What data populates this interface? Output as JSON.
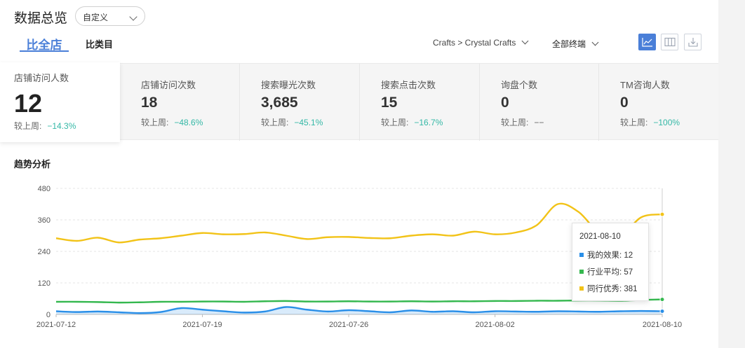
{
  "header": {
    "title": "数据总览",
    "range_select": "自定义"
  },
  "tabs": [
    {
      "label": "比全店"
    },
    {
      "label": "比类目"
    }
  ],
  "filters": {
    "category": "Crafts > Crystal Crafts",
    "terminal": "全部终端"
  },
  "view_buttons": [
    {
      "icon": "line-chart-icon",
      "active": true
    },
    {
      "icon": "columns-icon"
    },
    {
      "icon": "download-icon"
    }
  ],
  "metrics": [
    {
      "label": "店铺访问人数",
      "value": "12",
      "compare_label": "较上周:",
      "delta": "−14.3%"
    },
    {
      "label": "店铺访问次数",
      "value": "18",
      "compare_label": "较上周:",
      "delta": "−48.6%"
    },
    {
      "label": "搜索曝光次数",
      "value": "3,685",
      "compare_label": "较上周:",
      "delta": "−45.1%"
    },
    {
      "label": "搜索点击次数",
      "value": "15",
      "compare_label": "较上周:",
      "delta": "−16.7%"
    },
    {
      "label": "询盘个数",
      "value": "0",
      "compare_label": "较上周:",
      "delta": "−−"
    },
    {
      "label": "TM咨询人数",
      "value": "0",
      "compare_label": "较上周:",
      "delta": "−100%"
    }
  ],
  "colors": {
    "accent": "#4a7fd8",
    "delta_down": "#34b8a6",
    "mine": "#2a8fe8",
    "industry_avg": "#35b84f",
    "peer_best": "#f2c318"
  },
  "trend": {
    "title": "趋势分析",
    "tooltip": {
      "date": "2021-08-10",
      "rows": [
        {
          "label": "我的效果: 12",
          "color": "#2a8fe8"
        },
        {
          "label": "行业平均: 57",
          "color": "#35b84f"
        },
        {
          "label": "同行优秀: 381",
          "color": "#f2c318"
        }
      ]
    }
  },
  "chart_data": {
    "type": "line",
    "title": "",
    "ylim": [
      0,
      480
    ],
    "y_ticks": [
      "0",
      "120",
      "240",
      "360",
      "480"
    ],
    "x_ticks": [
      "2021-07-12",
      "2021-07-19",
      "2021-07-26",
      "2021-08-02",
      "2021-08-10"
    ],
    "x": [
      "2021-07-12",
      "2021-07-13",
      "2021-07-14",
      "2021-07-15",
      "2021-07-16",
      "2021-07-17",
      "2021-07-18",
      "2021-07-19",
      "2021-07-20",
      "2021-07-21",
      "2021-07-22",
      "2021-07-23",
      "2021-07-24",
      "2021-07-25",
      "2021-07-26",
      "2021-07-27",
      "2021-07-28",
      "2021-07-29",
      "2021-07-30",
      "2021-07-31",
      "2021-08-01",
      "2021-08-02",
      "2021-08-03",
      "2021-08-04",
      "2021-08-05",
      "2021-08-06",
      "2021-08-07",
      "2021-08-08",
      "2021-08-09",
      "2021-08-10"
    ],
    "grid": true,
    "series": [
      {
        "name": "我的效果",
        "color": "#2a8fe8",
        "area": true,
        "values": [
          12,
          9,
          11,
          8,
          5,
          9,
          24,
          18,
          12,
          7,
          11,
          28,
          18,
          11,
          16,
          12,
          8,
          15,
          10,
          12,
          8,
          12,
          11,
          10,
          12,
          11,
          10,
          12,
          13,
          12
        ]
      },
      {
        "name": "行业平均",
        "color": "#35b84f",
        "values": [
          48,
          48,
          47,
          45,
          46,
          48,
          48,
          49,
          49,
          48,
          50,
          51,
          49,
          49,
          50,
          49,
          49,
          50,
          49,
          50,
          50,
          51,
          51,
          52,
          52,
          53,
          53,
          52,
          55,
          57
        ]
      },
      {
        "name": "同行优秀",
        "color": "#f2c318",
        "values": [
          290,
          280,
          292,
          274,
          285,
          290,
          300,
          310,
          305,
          306,
          312,
          300,
          287,
          294,
          295,
          291,
          290,
          300,
          305,
          300,
          315,
          305,
          312,
          340,
          420,
          390,
          310,
          300,
          370,
          381
        ]
      }
    ]
  }
}
